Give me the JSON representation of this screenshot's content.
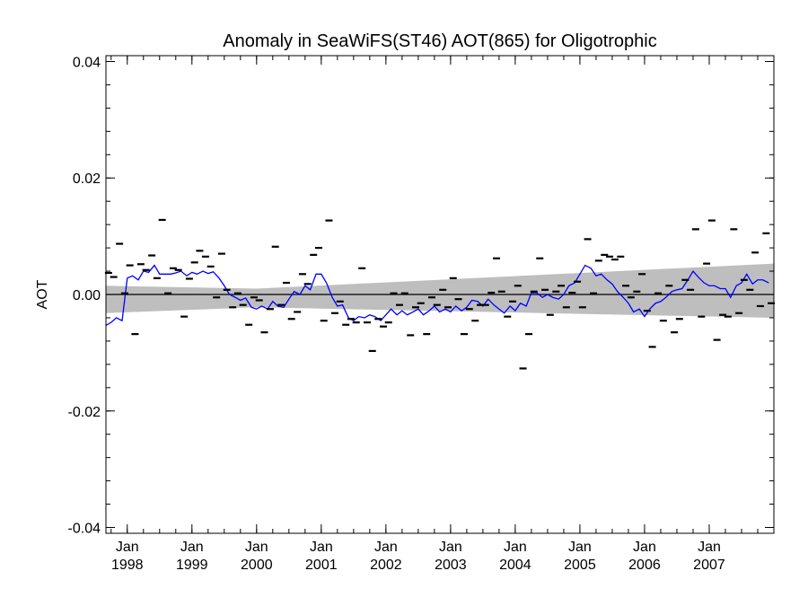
{
  "chart_data": {
    "type": "line",
    "title": "Anomaly in SeaWiFS(ST46) AOT(865) for Oligotrophic",
    "xlabel": "",
    "ylabel": "AOT",
    "ylim": [
      -0.041,
      0.041
    ],
    "xlim": [
      1997.67,
      2008.0
    ],
    "grid": false,
    "legend": "none",
    "y_ticks": [
      -0.04,
      -0.02,
      0.0,
      0.02,
      0.04
    ],
    "y_tick_labels": [
      "-0.04",
      "-0.02",
      "0.00",
      "0.02",
      "0.04"
    ],
    "x_ticks": [
      {
        "value": 1998.0,
        "month": "Jan",
        "year": "1998"
      },
      {
        "value": 1999.0,
        "month": "Jan",
        "year": "1999"
      },
      {
        "value": 2000.0,
        "month": "Jan",
        "year": "2000"
      },
      {
        "value": 2001.0,
        "month": "Jan",
        "year": "2001"
      },
      {
        "value": 2002.0,
        "month": "Jan",
        "year": "2002"
      },
      {
        "value": 2003.0,
        "month": "Jan",
        "year": "2003"
      },
      {
        "value": 2004.0,
        "month": "Jan",
        "year": "2004"
      },
      {
        "value": 2005.0,
        "month": "Jan",
        "year": "2005"
      },
      {
        "value": 2006.0,
        "month": "Jan",
        "year": "2006"
      },
      {
        "value": 2007.0,
        "month": "Jan",
        "year": "2007"
      }
    ],
    "zero_line": 0.0,
    "band": {
      "color": "#bebebe",
      "x": [
        1997.67,
        2000.0,
        2008.0
      ],
      "upper": [
        0.0015,
        0.001,
        0.0053
      ],
      "lower": [
        -0.0032,
        -0.0022,
        -0.004
      ]
    },
    "series": [
      {
        "role": "smoothed",
        "color": "#0000ff",
        "points": [
          [
            1997.67,
            -0.0053
          ],
          [
            1997.75,
            -0.0048
          ],
          [
            1997.83,
            -0.004
          ],
          [
            1997.92,
            -0.0045
          ],
          [
            1998.0,
            0.0028
          ],
          [
            1998.08,
            0.0032
          ],
          [
            1998.17,
            0.0025
          ],
          [
            1998.25,
            0.004
          ],
          [
            1998.33,
            0.0038
          ],
          [
            1998.42,
            0.005
          ],
          [
            1998.5,
            0.0035
          ],
          [
            1998.58,
            0.0035
          ],
          [
            1998.67,
            0.0035
          ],
          [
            1998.75,
            0.0037
          ],
          [
            1998.83,
            0.004
          ],
          [
            1998.92,
            0.0032
          ],
          [
            1999.0,
            0.0038
          ],
          [
            1999.08,
            0.0035
          ],
          [
            1999.17,
            0.004
          ],
          [
            1999.25,
            0.0036
          ],
          [
            1999.33,
            0.0039
          ],
          [
            1999.42,
            0.0028
          ],
          [
            1999.5,
            0.0015
          ],
          [
            1999.58,
            0.0
          ],
          [
            1999.67,
            -0.0005
          ],
          [
            1999.75,
            -0.001
          ],
          [
            1999.83,
            -0.0006
          ],
          [
            1999.92,
            -0.0022
          ],
          [
            2000.0,
            -0.0025
          ],
          [
            2000.08,
            -0.002
          ],
          [
            2000.17,
            -0.0025
          ],
          [
            2000.25,
            -0.0012
          ],
          [
            2000.33,
            -0.002
          ],
          [
            2000.42,
            -0.0022
          ],
          [
            2000.5,
            -0.0008
          ],
          [
            2000.58,
            0.0005
          ],
          [
            2000.67,
            0.0
          ],
          [
            2000.75,
            0.0015
          ],
          [
            2000.83,
            0.0008
          ],
          [
            2000.92,
            0.0035
          ],
          [
            2001.0,
            0.0035
          ],
          [
            2001.08,
            0.002
          ],
          [
            2001.17,
            -0.0005
          ],
          [
            2001.25,
            -0.002
          ],
          [
            2001.33,
            -0.0018
          ],
          [
            2001.42,
            -0.004
          ],
          [
            2001.5,
            -0.0045
          ],
          [
            2001.58,
            -0.0038
          ],
          [
            2001.67,
            -0.004
          ],
          [
            2001.75,
            -0.0035
          ],
          [
            2001.83,
            -0.0038
          ],
          [
            2001.92,
            -0.0045
          ],
          [
            2002.0,
            -0.0035
          ],
          [
            2002.08,
            -0.0025
          ],
          [
            2002.17,
            -0.0035
          ],
          [
            2002.25,
            -0.0028
          ],
          [
            2002.33,
            -0.0035
          ],
          [
            2002.42,
            -0.003
          ],
          [
            2002.5,
            -0.0025
          ],
          [
            2002.58,
            -0.0035
          ],
          [
            2002.67,
            -0.0028
          ],
          [
            2002.75,
            -0.002
          ],
          [
            2002.83,
            -0.003
          ],
          [
            2002.92,
            -0.0025
          ],
          [
            2003.0,
            -0.003
          ],
          [
            2003.08,
            -0.002
          ],
          [
            2003.17,
            -0.0028
          ],
          [
            2003.25,
            -0.0022
          ],
          [
            2003.33,
            -0.001
          ],
          [
            2003.42,
            -0.0012
          ],
          [
            2003.5,
            -0.002
          ],
          [
            2003.58,
            -0.0008
          ],
          [
            2003.67,
            -0.0018
          ],
          [
            2003.75,
            -0.0025
          ],
          [
            2003.83,
            -0.0032
          ],
          [
            2003.92,
            -0.002
          ],
          [
            2004.0,
            -0.0028
          ],
          [
            2004.08,
            -0.0015
          ],
          [
            2004.17,
            -0.002
          ],
          [
            2004.25,
            0.0003
          ],
          [
            2004.33,
            0.0003
          ],
          [
            2004.42,
            -0.0005
          ],
          [
            2004.5,
            0.0
          ],
          [
            2004.58,
            -0.0005
          ],
          [
            2004.67,
            -0.0008
          ],
          [
            2004.75,
            0.0
          ],
          [
            2004.83,
            0.0015
          ],
          [
            2004.92,
            0.002
          ],
          [
            2005.0,
            0.0035
          ],
          [
            2005.08,
            0.005
          ],
          [
            2005.17,
            0.0045
          ],
          [
            2005.25,
            0.0032
          ],
          [
            2005.33,
            0.0035
          ],
          [
            2005.42,
            0.0025
          ],
          [
            2005.5,
            0.0018
          ],
          [
            2005.58,
            0.0005
          ],
          [
            2005.67,
            -0.0005
          ],
          [
            2005.75,
            -0.0015
          ],
          [
            2005.83,
            -0.003
          ],
          [
            2005.92,
            -0.0025
          ],
          [
            2006.0,
            -0.0038
          ],
          [
            2006.08,
            -0.0025
          ],
          [
            2006.17,
            -0.0015
          ],
          [
            2006.25,
            -0.0012
          ],
          [
            2006.33,
            -0.0005
          ],
          [
            2006.42,
            0.0005
          ],
          [
            2006.5,
            0.0008
          ],
          [
            2006.58,
            0.001
          ],
          [
            2006.67,
            0.0025
          ],
          [
            2006.75,
            0.004
          ],
          [
            2006.83,
            0.003
          ],
          [
            2006.92,
            0.002
          ],
          [
            2007.0,
            0.0015
          ],
          [
            2007.08,
            0.0015
          ],
          [
            2007.17,
            0.001
          ],
          [
            2007.25,
            0.001
          ],
          [
            2007.33,
            -0.0005
          ],
          [
            2007.42,
            0.0015
          ],
          [
            2007.5,
            0.002
          ],
          [
            2007.58,
            0.0035
          ],
          [
            2007.67,
            0.0018
          ],
          [
            2007.75,
            0.0025
          ],
          [
            2007.83,
            0.0025
          ],
          [
            2007.92,
            0.002
          ]
        ]
      },
      {
        "role": "monthly",
        "color": "#000000",
        "points": [
          [
            1997.71,
            0.0037
          ],
          [
            1997.79,
            0.003
          ],
          [
            1997.88,
            0.0087
          ],
          [
            1997.96,
            0.0002
          ],
          [
            1998.04,
            0.005
          ],
          [
            1998.12,
            -0.0068
          ],
          [
            1998.21,
            0.0052
          ],
          [
            1998.29,
            0.0042
          ],
          [
            1998.38,
            0.0067
          ],
          [
            1998.46,
            0.0028
          ],
          [
            1998.54,
            0.0128
          ],
          [
            1998.63,
            0.0002
          ],
          [
            1998.71,
            0.0045
          ],
          [
            1998.79,
            0.0042
          ],
          [
            1998.88,
            -0.0038
          ],
          [
            1998.96,
            0.0027
          ],
          [
            1999.04,
            0.0055
          ],
          [
            1999.12,
            0.0075
          ],
          [
            1999.21,
            0.0065
          ],
          [
            1999.29,
            0.0048
          ],
          [
            1999.38,
            -0.0005
          ],
          [
            1999.46,
            0.007
          ],
          [
            1999.54,
            0.0008
          ],
          [
            1999.63,
            -0.0022
          ],
          [
            1999.71,
            0.0002
          ],
          [
            1999.79,
            -0.0018
          ],
          [
            1999.88,
            -0.0052
          ],
          [
            1999.96,
            -0.0005
          ],
          [
            2000.04,
            -0.001
          ],
          [
            2000.12,
            -0.0065
          ],
          [
            2000.21,
            -0.0025
          ],
          [
            2000.29,
            0.0082
          ],
          [
            2000.38,
            -0.0018
          ],
          [
            2000.46,
            0.002
          ],
          [
            2000.54,
            -0.0042
          ],
          [
            2000.63,
            -0.003
          ],
          [
            2000.71,
            0.0035
          ],
          [
            2000.79,
            0.0018
          ],
          [
            2000.88,
            0.0068
          ],
          [
            2000.96,
            0.008
          ],
          [
            2001.04,
            -0.0045
          ],
          [
            2001.12,
            0.0127
          ],
          [
            2001.21,
            -0.0032
          ],
          [
            2001.29,
            -0.0012
          ],
          [
            2001.38,
            -0.0052
          ],
          [
            2001.46,
            -0.0042
          ],
          [
            2001.54,
            -0.0048
          ],
          [
            2001.63,
            0.0045
          ],
          [
            2001.71,
            -0.0048
          ],
          [
            2001.79,
            -0.0097
          ],
          [
            2001.88,
            -0.0042
          ],
          [
            2001.96,
            -0.0055
          ],
          [
            2002.04,
            -0.0048
          ],
          [
            2002.12,
            0.0002
          ],
          [
            2002.21,
            -0.0018
          ],
          [
            2002.29,
            0.0002
          ],
          [
            2002.38,
            -0.007
          ],
          [
            2002.46,
            -0.0022
          ],
          [
            2002.54,
            -0.0015
          ],
          [
            2002.63,
            -0.0068
          ],
          [
            2002.71,
            -0.0005
          ],
          [
            2002.79,
            -0.0018
          ],
          [
            2002.88,
            0.0008
          ],
          [
            2002.96,
            -0.0022
          ],
          [
            2003.04,
            0.0028
          ],
          [
            2003.12,
            -0.0008
          ],
          [
            2003.21,
            -0.0068
          ],
          [
            2003.29,
            -0.0025
          ],
          [
            2003.38,
            -0.0045
          ],
          [
            2003.46,
            -0.0018
          ],
          [
            2003.54,
            -0.0018
          ],
          [
            2003.63,
            0.0003
          ],
          [
            2003.71,
            0.0062
          ],
          [
            2003.79,
            0.0005
          ],
          [
            2003.88,
            -0.0038
          ],
          [
            2003.96,
            -0.0012
          ],
          [
            2004.04,
            0.0015
          ],
          [
            2004.12,
            -0.0127
          ],
          [
            2004.21,
            -0.0068
          ],
          [
            2004.29,
            0.0005
          ],
          [
            2004.38,
            0.0062
          ],
          [
            2004.46,
            0.0008
          ],
          [
            2004.54,
            -0.0035
          ],
          [
            2004.63,
            0.0005
          ],
          [
            2004.71,
            0.0015
          ],
          [
            2004.79,
            -0.0022
          ],
          [
            2004.88,
            0.0003
          ],
          [
            2004.96,
            0.0022
          ],
          [
            2005.04,
            -0.0022
          ],
          [
            2005.12,
            0.0095
          ],
          [
            2005.21,
            0.0002
          ],
          [
            2005.29,
            0.0058
          ],
          [
            2005.38,
            0.0068
          ],
          [
            2005.46,
            0.0065
          ],
          [
            2005.54,
            0.006
          ],
          [
            2005.63,
            0.0065
          ],
          [
            2005.71,
            0.0015
          ],
          [
            2005.79,
            -0.0005
          ],
          [
            2005.88,
            0.0005
          ],
          [
            2005.96,
            0.0035
          ],
          [
            2006.04,
            -0.0028
          ],
          [
            2006.12,
            -0.009
          ],
          [
            2006.21,
            0.0002
          ],
          [
            2006.29,
            -0.0045
          ],
          [
            2006.38,
            0.0015
          ],
          [
            2006.46,
            -0.0065
          ],
          [
            2006.54,
            -0.0042
          ],
          [
            2006.63,
            0.0025
          ],
          [
            2006.71,
            0.0008
          ],
          [
            2006.79,
            0.0112
          ],
          [
            2006.88,
            -0.0038
          ],
          [
            2006.96,
            0.0053
          ],
          [
            2007.04,
            0.0127
          ],
          [
            2007.12,
            -0.0078
          ],
          [
            2007.21,
            -0.0035
          ],
          [
            2007.29,
            -0.0038
          ],
          [
            2007.38,
            0.0112
          ],
          [
            2007.46,
            -0.0032
          ],
          [
            2007.54,
            0.0025
          ],
          [
            2007.63,
            0.0008
          ],
          [
            2007.71,
            0.0072
          ],
          [
            2007.79,
            -0.002
          ],
          [
            2007.88,
            0.0105
          ],
          [
            2007.96,
            -0.0015
          ]
        ]
      }
    ]
  }
}
